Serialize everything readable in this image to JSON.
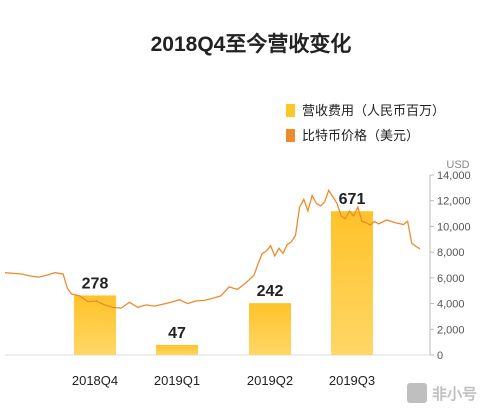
{
  "chart_data": {
    "type": "bar",
    "title": "2018Q4至今营收变化",
    "categories": [
      "2018Q4",
      "2019Q1",
      "2019Q2",
      "2019Q3"
    ],
    "series": [
      {
        "name": "营收费用（人民币百万）",
        "type": "bar",
        "values": [
          278,
          47,
          242,
          671
        ],
        "color": "#FFC62B"
      }
    ],
    "price_series": {
      "name": "比特币价格（美元）",
      "type": "line",
      "axis": "right",
      "color": "#EE8A2E",
      "x": [
        0,
        0.02,
        0.04,
        0.06,
        0.08,
        0.1,
        0.12,
        0.14,
        0.15,
        0.16,
        0.18,
        0.2,
        0.22,
        0.24,
        0.26,
        0.28,
        0.3,
        0.32,
        0.34,
        0.36,
        0.38,
        0.4,
        0.42,
        0.44,
        0.46,
        0.48,
        0.5,
        0.52,
        0.54,
        0.56,
        0.58,
        0.6,
        0.61,
        0.62,
        0.63,
        0.64,
        0.65,
        0.66,
        0.67,
        0.68,
        0.69,
        0.7,
        0.71,
        0.72,
        0.73,
        0.74,
        0.75,
        0.76,
        0.77,
        0.78,
        0.79,
        0.8,
        0.81,
        0.82,
        0.83,
        0.84,
        0.85,
        0.86,
        0.87,
        0.88,
        0.89,
        0.9,
        0.92,
        0.94,
        0.96,
        0.97,
        0.98,
        0.99,
        1.0
      ],
      "values": [
        6400,
        6350,
        6300,
        6150,
        6050,
        6200,
        6400,
        6300,
        5200,
        4750,
        4600,
        4150,
        4200,
        3900,
        3700,
        3650,
        4100,
        3700,
        3900,
        3800,
        3950,
        4100,
        4300,
        4000,
        4200,
        4250,
        4400,
        4600,
        5300,
        5100,
        5600,
        6200,
        7100,
        7900,
        8100,
        8500,
        7700,
        8300,
        7900,
        8600,
        8800,
        9300,
        11500,
        12100,
        11200,
        12400,
        11800,
        11600,
        11900,
        12800,
        12300,
        11800,
        10800,
        10600,
        11200,
        10800,
        11500,
        10400,
        10300,
        10100,
        10400,
        10200,
        10500,
        10300,
        10150,
        10400,
        8700,
        8450,
        8250
      ],
      "ylim": [
        0,
        14000
      ],
      "yticks": [
        0,
        2000,
        4000,
        6000,
        8000,
        10000,
        12000,
        14000
      ],
      "ytick_labels": [
        "0",
        "2,000",
        "4,000",
        "6,000",
        "8,000",
        "10,000",
        "12,000",
        "14,000"
      ],
      "unit_label": "USD"
    },
    "bar_ylim": [
      0,
      840
    ],
    "legend_position": "top-right",
    "grid": false
  },
  "watermark": "非小号"
}
